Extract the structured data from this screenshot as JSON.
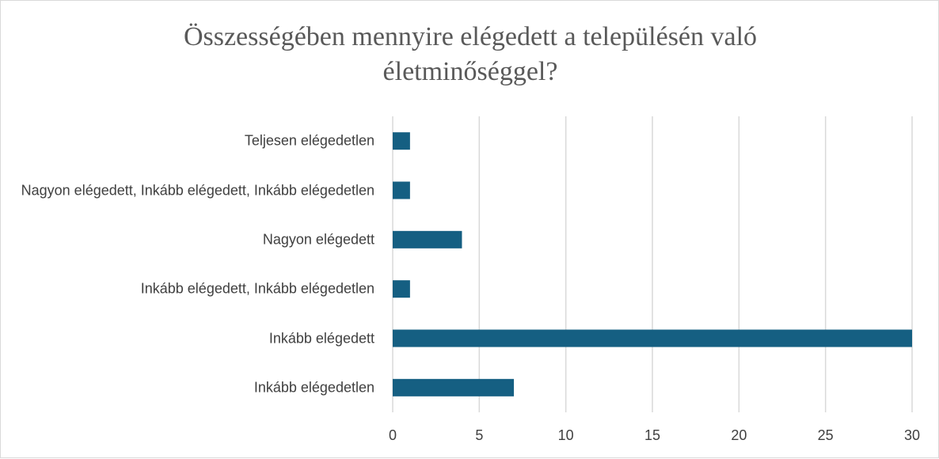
{
  "chart_data": {
    "type": "barh",
    "title": "Összességében mennyire elégedett a településén való életminőséggel?",
    "categories": [
      "Teljesen elégedetlen",
      "Nagyon elégedett, Inkább elégedett, Inkább elégedetlen",
      "Nagyon elégedett",
      "Inkább elégedett, Inkább elégedetlen",
      "Inkább elégedett",
      "Inkább elégedetlen"
    ],
    "values": [
      1,
      1,
      4,
      1,
      30,
      7
    ],
    "color": "#155f82",
    "xlim": [
      0,
      30
    ],
    "xticks": [
      0,
      5,
      10,
      15,
      20,
      25,
      30
    ],
    "grid": true
  }
}
